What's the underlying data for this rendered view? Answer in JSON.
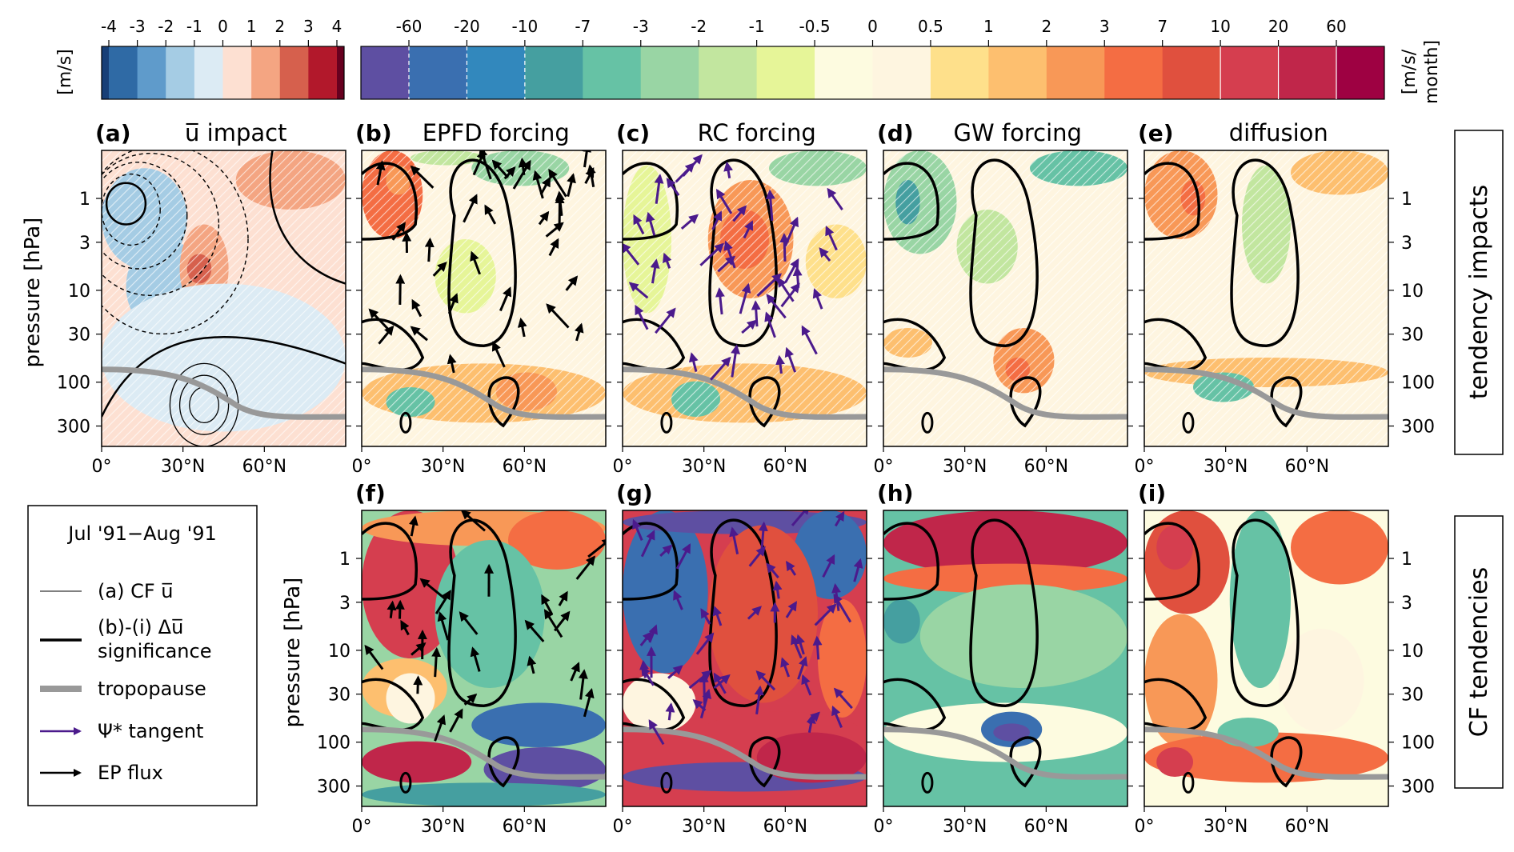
{
  "colorbars": {
    "wind": {
      "label": "[m/s]",
      "ticks": [
        "-4",
        "-3",
        "-2",
        "-1",
        "0",
        "1",
        "2",
        "3",
        "4"
      ],
      "colors": [
        "#173f77",
        "#2f6aa5",
        "#5f9bcb",
        "#a5cce4",
        "#dcebf4",
        "#fde0d2",
        "#f4a582",
        "#d6604d",
        "#b2182b",
        "#67001f"
      ]
    },
    "tendency": {
      "label_line1": "[m/s/",
      "label_line2": "month]",
      "ticks": [
        "-60",
        "-20",
        "-10",
        "-7",
        "-3",
        "-2",
        "-1",
        "-0.5",
        "0",
        "0.5",
        "1",
        "2",
        "3",
        "7",
        "10",
        "20",
        "60"
      ],
      "colors": [
        "#5e4fa2",
        "#3a6fb0",
        "#3288bd",
        "#459fa0",
        "#66c2a5",
        "#99d5a4",
        "#c2e69f",
        "#e6f598",
        "#fdfbe0",
        "#fef5e0",
        "#fee08b",
        "#fdbf6f",
        "#f89857",
        "#f46d43",
        "#e0503e",
        "#d53e4f",
        "#c0264a",
        "#9e0142"
      ]
    }
  },
  "chart_data": [
    {
      "id": "a",
      "type": "heatmap",
      "panel_label": "(a)",
      "title": "u̅ impact",
      "ylabel": "pressure [hPa]",
      "xticks": [
        "0°",
        "30°N",
        "60°N"
      ],
      "yticks": [
        "1",
        "3",
        "10",
        "30",
        "100",
        "300"
      ],
      "x_range": [
        0,
        90
      ],
      "y_range": [
        500,
        0.3
      ],
      "y_scale": "log"
    },
    {
      "id": "b",
      "type": "heatmap",
      "panel_label": "(b)",
      "title": "EPFD forcing",
      "xticks": [
        "0°",
        "30°N",
        "60°N"
      ],
      "y_range": [
        500,
        0.3
      ],
      "y_scale": "log"
    },
    {
      "id": "c",
      "type": "heatmap",
      "panel_label": "(c)",
      "title": "RC forcing",
      "xticks": [
        "0°",
        "30°N",
        "60°N"
      ],
      "y_range": [
        500,
        0.3
      ],
      "y_scale": "log"
    },
    {
      "id": "d",
      "type": "heatmap",
      "panel_label": "(d)",
      "title": "GW forcing",
      "xticks": [
        "0°",
        "30°N",
        "60°N"
      ],
      "y_range": [
        500,
        0.3
      ],
      "y_scale": "log"
    },
    {
      "id": "e",
      "type": "heatmap",
      "panel_label": "(e)",
      "title": "diffusion",
      "xticks": [
        "0°",
        "30°N",
        "60°N"
      ],
      "yticks": [
        "1",
        "3",
        "10",
        "30",
        "100",
        "300"
      ],
      "y_scale": "log"
    },
    {
      "id": "f",
      "type": "heatmap",
      "panel_label": "(f)",
      "title": "",
      "ylabel": "pressure [hPa]",
      "xticks": [
        "0°",
        "30°N",
        "60°N"
      ],
      "yticks": [
        "1",
        "3",
        "10",
        "30",
        "100",
        "300"
      ],
      "y_scale": "log"
    },
    {
      "id": "g",
      "type": "heatmap",
      "panel_label": "(g)",
      "title": "",
      "xticks": [
        "0°",
        "30°N",
        "60°N"
      ],
      "y_scale": "log"
    },
    {
      "id": "h",
      "type": "heatmap",
      "panel_label": "(h)",
      "title": "",
      "xticks": [
        "0°",
        "30°N",
        "60°N"
      ],
      "y_scale": "log"
    },
    {
      "id": "i",
      "type": "heatmap",
      "panel_label": "(i)",
      "title": "",
      "xticks": [
        "0°",
        "30°N",
        "60°N"
      ],
      "yticks": [
        "1",
        "3",
        "10",
        "30",
        "100",
        "300"
      ],
      "y_scale": "log"
    }
  ],
  "row_labels": {
    "top": "tendency impacts",
    "bottom": "CF tendencies"
  },
  "legend": {
    "title": "Jul '91−Aug '91",
    "items": [
      {
        "label": "(a) CF u̅"
      },
      {
        "label": "(b)-(i) Δu̅"
      },
      {
        "label": "significance"
      },
      {
        "label": "tropopause"
      },
      {
        "label": "Ψ* tangent"
      },
      {
        "label": "EP flux"
      }
    ]
  },
  "colors": {
    "tropopause": "#999999",
    "psi_arrow": "#4b1a8c",
    "ep_arrow": "#000000"
  }
}
